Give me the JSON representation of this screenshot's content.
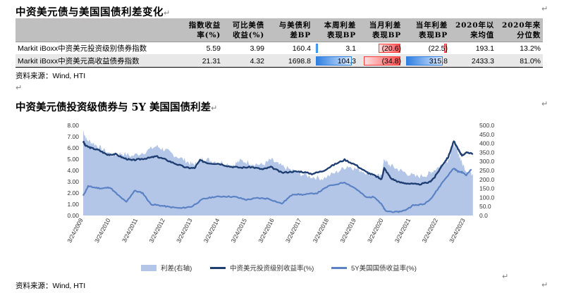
{
  "title1": "中资美元债与美国国债利差变化",
  "table": {
    "headers": [
      "",
      "指数收益\n率(%)",
      "可比美债\n收益(%)",
      "与美债利\n差BP",
      "本周利差\n表现BP",
      "当月利差\n表现BP",
      "当年利差\n表现BP",
      "2020年以\n来均值",
      "2020年来\n分位数"
    ],
    "rows": [
      {
        "name": "Markit iBoxx中资美元投资级别债券指数",
        "cells": [
          "5.59",
          "3.99",
          "160.4",
          "3.1",
          "(20.6)",
          "(22.5)",
          "193.1",
          "13.2%"
        ]
      },
      {
        "name": "Markit iBoxx中资美元高收益债券指数",
        "cells": [
          "21.31",
          "4.32",
          "1698.8",
          "104.3",
          "(34.8)",
          "315.8",
          "2433.3",
          "81.0%"
        ]
      }
    ],
    "bars": {
      "week": [
        3.1,
        104.3
      ],
      "month": [
        -20.6,
        -34.8
      ],
      "year": [
        -22.5,
        315.8
      ]
    }
  },
  "source1": "资料来源：Wind, HTI",
  "title2": "中资美元债投资级债券与 5Y 美国国债利差",
  "source2": "资料来源：Wind, HTI",
  "chart_data": {
    "type": "line",
    "x_start": "2009-03-24",
    "x_end": "2023-06-24",
    "xticks": [
      "3/24/2009",
      "3/24/2010",
      "3/24/2011",
      "3/24/2012",
      "3/24/2013",
      "3/24/2014",
      "3/24/2015",
      "3/24/2016",
      "3/24/2017",
      "3/24/2018",
      "3/24/2019",
      "3/24/2020",
      "3/24/2021",
      "3/24/2022",
      "3/24/2023"
    ],
    "y_left": {
      "min": 0,
      "max": 8,
      "ticks": [
        "0.00",
        "1.00",
        "2.00",
        "3.00",
        "4.00",
        "5.00",
        "6.00",
        "7.00",
        "8.00"
      ]
    },
    "y_right": {
      "min": 0,
      "max": 500,
      "ticks": [
        "0.0",
        "50.0",
        "100.0",
        "150.0",
        "200.0",
        "250.0",
        "300.0",
        "350.0",
        "400.0",
        "450.0",
        "500.0"
      ]
    },
    "series": [
      {
        "name": "利差(右轴)",
        "axis": "right",
        "kind": "area",
        "color": "#b4c6e7",
        "points": [
          [
            2009.22,
            470
          ],
          [
            2009.35,
            420
          ],
          [
            2009.6,
            400
          ],
          [
            2009.9,
            370
          ],
          [
            2010.3,
            335
          ],
          [
            2010.6,
            345
          ],
          [
            2011.0,
            330
          ],
          [
            2011.5,
            355
          ],
          [
            2011.9,
            385
          ],
          [
            2012.2,
            365
          ],
          [
            2012.5,
            340
          ],
          [
            2012.9,
            310
          ],
          [
            2013.2,
            285
          ],
          [
            2013.4,
            285
          ],
          [
            2013.6,
            320
          ],
          [
            2013.9,
            305
          ],
          [
            2014.3,
            295
          ],
          [
            2014.7,
            280
          ],
          [
            2015.0,
            305
          ],
          [
            2015.4,
            290
          ],
          [
            2015.8,
            280
          ],
          [
            2016.1,
            310
          ],
          [
            2016.4,
            280
          ],
          [
            2016.8,
            255
          ],
          [
            2017.2,
            230
          ],
          [
            2017.6,
            215
          ],
          [
            2018.0,
            205
          ],
          [
            2018.5,
            240
          ],
          [
            2018.9,
            275
          ],
          [
            2019.2,
            260
          ],
          [
            2019.6,
            240
          ],
          [
            2019.9,
            225
          ],
          [
            2020.15,
            215
          ],
          [
            2020.25,
            315
          ],
          [
            2020.4,
            285
          ],
          [
            2020.7,
            260
          ],
          [
            2021.0,
            240
          ],
          [
            2021.4,
            215
          ],
          [
            2021.8,
            225
          ],
          [
            2022.0,
            245
          ],
          [
            2022.3,
            275
          ],
          [
            2022.6,
            310
          ],
          [
            2022.8,
            395
          ],
          [
            2022.95,
            355
          ],
          [
            2023.1,
            290
          ],
          [
            2023.3,
            240
          ],
          [
            2023.5,
            230
          ]
        ]
      },
      {
        "name": "中资美元投资级别收益率(%)",
        "axis": "left",
        "kind": "line",
        "color": "#1f3f73",
        "points": [
          [
            2009.22,
            6.6
          ],
          [
            2009.3,
            6.2
          ],
          [
            2009.5,
            6.0
          ],
          [
            2009.8,
            5.8
          ],
          [
            2010.1,
            5.4
          ],
          [
            2010.4,
            5.45
          ],
          [
            2010.7,
            5.1
          ],
          [
            2011.0,
            4.9
          ],
          [
            2011.3,
            5.0
          ],
          [
            2011.6,
            5.1
          ],
          [
            2011.9,
            5.25
          ],
          [
            2012.2,
            5.0
          ],
          [
            2012.6,
            4.6
          ],
          [
            2013.0,
            4.25
          ],
          [
            2013.3,
            4.2
          ],
          [
            2013.5,
            4.9
          ],
          [
            2013.8,
            4.65
          ],
          [
            2014.2,
            4.6
          ],
          [
            2014.6,
            4.35
          ],
          [
            2015.0,
            4.25
          ],
          [
            2015.4,
            4.3
          ],
          [
            2015.8,
            4.1
          ],
          [
            2016.1,
            4.3
          ],
          [
            2016.5,
            3.8
          ],
          [
            2016.9,
            3.9
          ],
          [
            2017.2,
            3.9
          ],
          [
            2017.6,
            3.7
          ],
          [
            2018.0,
            3.95
          ],
          [
            2018.4,
            4.5
          ],
          [
            2018.8,
            4.95
          ],
          [
            2019.2,
            4.5
          ],
          [
            2019.6,
            3.85
          ],
          [
            2019.9,
            3.55
          ],
          [
            2020.15,
            3.2
          ],
          [
            2020.25,
            4.2
          ],
          [
            2020.5,
            3.3
          ],
          [
            2020.8,
            2.95
          ],
          [
            2021.1,
            2.85
          ],
          [
            2021.5,
            2.75
          ],
          [
            2021.9,
            2.95
          ],
          [
            2022.1,
            3.4
          ],
          [
            2022.4,
            4.55
          ],
          [
            2022.6,
            5.2
          ],
          [
            2022.8,
            6.6
          ],
          [
            2022.95,
            5.9
          ],
          [
            2023.1,
            5.35
          ],
          [
            2023.3,
            5.6
          ],
          [
            2023.5,
            5.5
          ]
        ]
      },
      {
        "name": "5Y美国国债收益率(%)",
        "axis": "left",
        "kind": "line",
        "color": "#5b82c4",
        "points": [
          [
            2009.22,
            1.75
          ],
          [
            2009.4,
            2.6
          ],
          [
            2009.6,
            2.5
          ],
          [
            2009.9,
            2.4
          ],
          [
            2010.2,
            2.5
          ],
          [
            2010.5,
            1.8
          ],
          [
            2010.8,
            1.2
          ],
          [
            2011.1,
            2.2
          ],
          [
            2011.4,
            2.0
          ],
          [
            2011.7,
            1.0
          ],
          [
            2012.0,
            0.9
          ],
          [
            2012.4,
            0.75
          ],
          [
            2012.8,
            0.65
          ],
          [
            2013.2,
            0.8
          ],
          [
            2013.6,
            1.45
          ],
          [
            2014.0,
            1.65
          ],
          [
            2014.4,
            1.7
          ],
          [
            2014.8,
            1.65
          ],
          [
            2015.2,
            1.4
          ],
          [
            2015.6,
            1.55
          ],
          [
            2016.0,
            1.5
          ],
          [
            2016.5,
            1.05
          ],
          [
            2016.9,
            1.9
          ],
          [
            2017.3,
            1.85
          ],
          [
            2017.8,
            2.0
          ],
          [
            2018.2,
            2.6
          ],
          [
            2018.8,
            2.95
          ],
          [
            2019.2,
            2.4
          ],
          [
            2019.6,
            1.6
          ],
          [
            2019.9,
            1.65
          ],
          [
            2020.15,
            1.0
          ],
          [
            2020.3,
            0.4
          ],
          [
            2020.7,
            0.3
          ],
          [
            2021.0,
            0.45
          ],
          [
            2021.3,
            0.9
          ],
          [
            2021.7,
            1.0
          ],
          [
            2022.0,
            1.6
          ],
          [
            2022.4,
            3.0
          ],
          [
            2022.8,
            4.2
          ],
          [
            2022.95,
            3.9
          ],
          [
            2023.1,
            3.85
          ],
          [
            2023.25,
            3.6
          ],
          [
            2023.45,
            4.1
          ]
        ]
      }
    ]
  }
}
